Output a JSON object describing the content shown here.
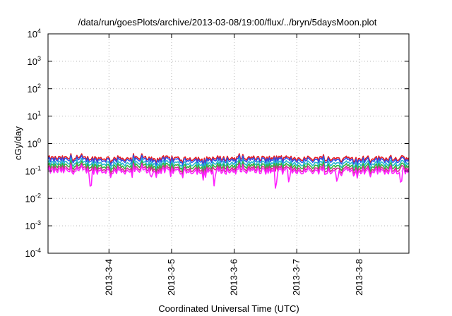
{
  "chart_data": {
    "type": "line",
    "title": "/data/run/goesPlots/archive/2013-03-08/19:00/flux/../bryn/5daysMoon.plot",
    "xlabel": "Coordinated Universal Time (UTC)",
    "ylabel": "cGy/day",
    "yscale": "log",
    "ylim": [
      0.0001,
      10000
    ],
    "y_ticks": [
      {
        "value": 0.0001,
        "base": "10",
        "exp": "-4"
      },
      {
        "value": 0.001,
        "base": "10",
        "exp": "-3"
      },
      {
        "value": 0.01,
        "base": "10",
        "exp": "-2"
      },
      {
        "value": 0.1,
        "base": "10",
        "exp": "-1"
      },
      {
        "value": 1,
        "base": "10",
        "exp": "0"
      },
      {
        "value": 10,
        "base": "10",
        "exp": "1"
      },
      {
        "value": 100,
        "base": "10",
        "exp": "2"
      },
      {
        "value": 1000,
        "base": "10",
        "exp": "3"
      },
      {
        "value": 10000,
        "base": "10",
        "exp": "4"
      }
    ],
    "xlim": [
      "2013-03-03 00:38",
      "2013-03-08 19:00"
    ],
    "x_ticks": [
      "2013-3-4",
      "2013-3-5",
      "2013-3-6",
      "2013-3-7",
      "2013-3-8"
    ],
    "grid": true,
    "legend": "none",
    "series": [
      {
        "color": "#e8181d",
        "base": 0.29,
        "dips": []
      },
      {
        "color": "#2f4fe6",
        "base": 0.25,
        "dips": []
      },
      {
        "color": "#26b7d2",
        "base": 0.19,
        "dips": []
      },
      {
        "color": "#33b23f",
        "base": 0.15,
        "dips": []
      },
      {
        "color": "#d22e91",
        "base": 0.12,
        "dips": []
      },
      {
        "color": "#ff22ff",
        "base": 0.1,
        "dips": [
          {
            "x": "2013-03-03 17:00",
            "y": 0.013
          },
          {
            "x": "2013-03-04 16:10",
            "y": 0.05
          },
          {
            "x": "2013-03-05 16:20",
            "y": 0.025
          },
          {
            "x": "2013-03-06 16:00",
            "y": 0.012
          },
          {
            "x": "2013-03-06 21:00",
            "y": 0.03
          },
          {
            "x": "2013-03-07 15:30",
            "y": 0.028
          },
          {
            "x": "2013-03-08 16:00",
            "y": 0.019
          }
        ]
      }
    ]
  }
}
